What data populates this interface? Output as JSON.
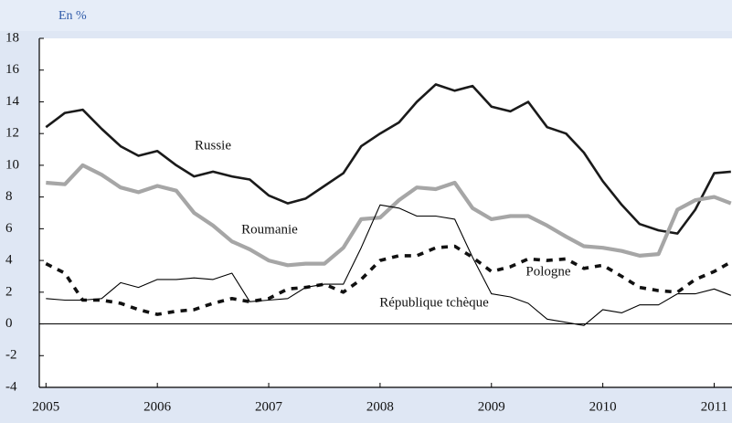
{
  "chart_data": {
    "type": "line",
    "unit_label": "En %",
    "x": [
      2005,
      2005.17,
      2005.33,
      2005.5,
      2005.67,
      2005.83,
      2006,
      2006.17,
      2006.33,
      2006.5,
      2006.67,
      2006.83,
      2007,
      2007.17,
      2007.33,
      2007.5,
      2007.67,
      2007.83,
      2008,
      2008.17,
      2008.33,
      2008.5,
      2008.67,
      2008.83,
      2009,
      2009.17,
      2009.33,
      2009.5,
      2009.67,
      2009.83,
      2010,
      2010.17,
      2010.33,
      2010.5,
      2010.67,
      2010.83,
      2011,
      2011.15
    ],
    "series": [
      {
        "name": "Russie",
        "color": "#1a1a1a",
        "style": "thick",
        "values": [
          12.4,
          13.3,
          13.5,
          12.3,
          11.2,
          10.6,
          10.9,
          10.0,
          9.3,
          9.6,
          9.3,
          9.1,
          8.1,
          7.6,
          7.9,
          8.7,
          9.5,
          11.2,
          12.0,
          12.7,
          14.0,
          15.1,
          14.7,
          15.0,
          13.7,
          13.4,
          14.0,
          12.4,
          12.0,
          10.8,
          9.0,
          7.5,
          6.3,
          5.9,
          5.7,
          7.2,
          9.5,
          9.6
        ]
      },
      {
        "name": "Roumanie",
        "color": "#a6a6a6",
        "style": "wide",
        "values": [
          8.9,
          8.8,
          10.0,
          9.4,
          8.6,
          8.3,
          8.7,
          8.4,
          7.0,
          6.2,
          5.2,
          4.7,
          4.0,
          3.7,
          3.8,
          3.8,
          4.8,
          6.6,
          6.7,
          7.8,
          8.6,
          8.5,
          8.9,
          7.3,
          6.6,
          6.8,
          6.8,
          6.2,
          5.5,
          4.9,
          4.8,
          4.6,
          4.3,
          4.4,
          7.2,
          7.8,
          8.0,
          7.6
        ]
      },
      {
        "name": "Pologne",
        "color": "#111111",
        "style": "dashed",
        "values": [
          3.8,
          3.2,
          1.5,
          1.5,
          1.3,
          0.9,
          0.6,
          0.8,
          0.9,
          1.3,
          1.6,
          1.4,
          1.6,
          2.2,
          2.3,
          2.5,
          2.0,
          2.8,
          4.0,
          4.3,
          4.3,
          4.8,
          4.9,
          4.2,
          3.3,
          3.6,
          4.1,
          4.0,
          4.1,
          3.5,
          3.7,
          3.0,
          2.3,
          2.1,
          2.0,
          2.8,
          3.3,
          3.9
        ]
      },
      {
        "name": "République tchèque",
        "color": "#000000",
        "style": "thin",
        "values": [
          1.6,
          1.5,
          1.5,
          1.6,
          2.6,
          2.3,
          2.8,
          2.8,
          2.9,
          2.8,
          3.2,
          1.4,
          1.5,
          1.6,
          2.3,
          2.5,
          2.5,
          4.8,
          7.5,
          7.3,
          6.8,
          6.8,
          6.6,
          4.2,
          1.9,
          1.7,
          1.3,
          0.3,
          0.1,
          -0.1,
          0.9,
          0.7,
          1.2,
          1.2,
          1.9,
          1.9,
          2.2,
          1.8
        ]
      }
    ],
    "xlim": [
      2004.94,
      2011.16
    ],
    "xticks": [
      2005,
      2006,
      2007,
      2008,
      2009,
      2010,
      2011
    ],
    "ylim": [
      -4,
      18
    ],
    "yticks": [
      -4,
      -2,
      0,
      2,
      4,
      6,
      8,
      10,
      12,
      14,
      16,
      18
    ]
  }
}
